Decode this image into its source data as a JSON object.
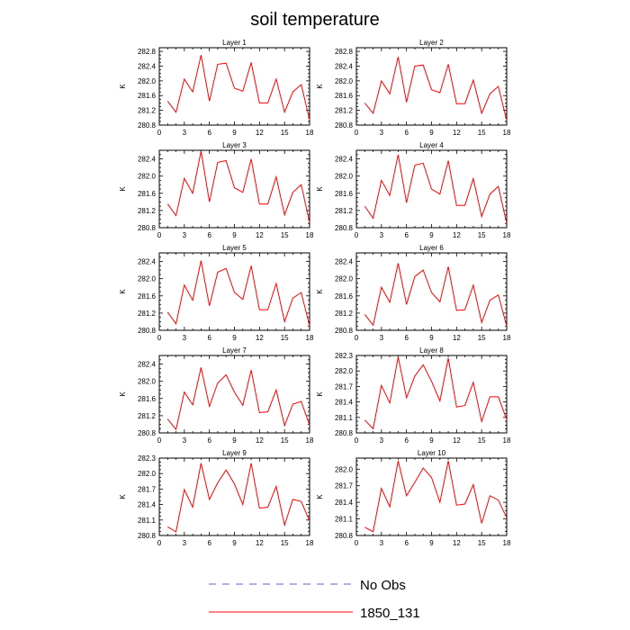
{
  "chart_data": {
    "type": "line",
    "title": "soil temperature",
    "legend": {
      "placement": "bottom",
      "entries": [
        {
          "label": "No Obs",
          "color": "#5566cc",
          "dash": true
        },
        {
          "label": "1850_131",
          "color": "#ff0000",
          "dash": false
        }
      ]
    },
    "x": [
      1,
      2,
      3,
      4,
      5,
      6,
      7,
      8,
      9,
      10,
      11,
      12,
      13,
      14,
      15,
      16,
      17,
      18
    ],
    "xlim": [
      0,
      18
    ],
    "xticks": [
      "0",
      "3",
      "6",
      "9",
      "12",
      "15",
      "18"
    ],
    "panels": [
      {
        "title": "Layer 1",
        "ylabel": "K",
        "ylim": [
          280.8,
          282.9
        ],
        "yticks": [
          "280.8",
          "281.2",
          "281.6",
          "282.0",
          "282.4",
          "282.8"
        ],
        "values": [
          281.45,
          281.15,
          282.05,
          281.7,
          282.7,
          281.45,
          282.45,
          282.48,
          281.8,
          281.72,
          282.5,
          281.4,
          281.4,
          282.05,
          281.15,
          281.7,
          281.9,
          280.95
        ]
      },
      {
        "title": "Layer 2",
        "ylabel": "K",
        "ylim": [
          280.8,
          282.9
        ],
        "yticks": [
          "280.8",
          "281.2",
          "281.6",
          "282.0",
          "282.4",
          "282.8"
        ],
        "values": [
          281.4,
          281.12,
          282.0,
          281.65,
          282.65,
          281.42,
          282.4,
          282.43,
          281.76,
          281.68,
          282.45,
          281.38,
          281.38,
          282.02,
          281.12,
          281.65,
          281.85,
          280.93
        ]
      },
      {
        "title": "Layer 3",
        "ylabel": "K",
        "ylim": [
          280.8,
          282.6
        ],
        "yticks": [
          "280.8",
          "281.2",
          "281.6",
          "282.0",
          "282.4"
        ],
        "values": [
          281.35,
          281.08,
          281.95,
          281.6,
          282.58,
          281.4,
          282.32,
          282.36,
          281.73,
          281.62,
          282.4,
          281.35,
          281.35,
          281.98,
          281.1,
          281.62,
          281.8,
          280.92
        ]
      },
      {
        "title": "Layer 4",
        "ylabel": "K",
        "ylim": [
          280.8,
          282.6
        ],
        "yticks": [
          "280.8",
          "281.2",
          "281.6",
          "282.0",
          "282.4"
        ],
        "values": [
          281.3,
          281.02,
          281.9,
          281.55,
          282.5,
          281.38,
          282.25,
          282.3,
          281.7,
          281.58,
          282.36,
          281.32,
          281.32,
          281.94,
          281.06,
          281.58,
          281.76,
          280.9
        ]
      },
      {
        "title": "Layer 5",
        "ylabel": "K",
        "ylim": [
          280.8,
          282.6
        ],
        "yticks": [
          "280.8",
          "281.2",
          "281.6",
          "282.0",
          "282.4"
        ],
        "values": [
          281.22,
          280.95,
          281.85,
          281.5,
          282.42,
          281.37,
          282.15,
          282.24,
          281.68,
          281.52,
          282.3,
          281.28,
          281.28,
          281.89,
          281.0,
          281.55,
          281.68,
          280.9
        ]
      },
      {
        "title": "Layer 6",
        "ylabel": "K",
        "ylim": [
          280.8,
          282.6
        ],
        "yticks": [
          "280.8",
          "281.2",
          "281.6",
          "282.0",
          "282.4"
        ],
        "values": [
          281.17,
          280.92,
          281.8,
          281.45,
          282.36,
          281.4,
          282.05,
          282.2,
          281.68,
          281.46,
          282.28,
          281.26,
          281.28,
          281.85,
          280.98,
          281.5,
          281.62,
          280.9
        ]
      },
      {
        "title": "Layer 7",
        "ylabel": "K",
        "ylim": [
          280.8,
          282.6
        ],
        "yticks": [
          "280.8",
          "281.2",
          "281.6",
          "282.0",
          "282.4"
        ],
        "values": [
          281.12,
          280.88,
          281.75,
          281.45,
          282.32,
          281.42,
          281.96,
          282.15,
          281.75,
          281.44,
          282.26,
          281.27,
          281.29,
          281.8,
          280.97,
          281.47,
          281.53,
          280.98
        ]
      },
      {
        "title": "Layer 8",
        "ylabel": "K",
        "ylim": [
          280.8,
          282.3
        ],
        "yticks": [
          "280.8",
          "281.1",
          "281.4",
          "281.7",
          "282.0",
          "282.3"
        ],
        "values": [
          281.05,
          280.88,
          281.72,
          281.38,
          282.27,
          281.48,
          281.9,
          282.12,
          281.8,
          281.42,
          282.25,
          281.3,
          281.33,
          281.78,
          281.02,
          281.5,
          281.5,
          281.06
        ]
      },
      {
        "title": "Layer 9",
        "ylabel": "K",
        "ylim": [
          280.8,
          282.3
        ],
        "yticks": [
          "280.8",
          "281.1",
          "281.4",
          "281.7",
          "282.0",
          "282.3"
        ],
        "values": [
          280.97,
          280.87,
          281.69,
          281.35,
          282.2,
          281.5,
          281.82,
          282.07,
          281.8,
          281.4,
          282.2,
          281.33,
          281.35,
          281.75,
          281.0,
          281.5,
          281.46,
          281.08
        ]
      },
      {
        "title": "Layer 10",
        "ylabel": "K",
        "ylim": [
          280.8,
          282.2
        ],
        "yticks": [
          "280.8",
          "281.1",
          "281.4",
          "281.7",
          "282.0"
        ],
        "values": [
          280.95,
          280.87,
          281.65,
          281.32,
          282.15,
          281.52,
          281.76,
          282.02,
          281.85,
          281.4,
          282.15,
          281.35,
          281.37,
          281.72,
          281.02,
          281.52,
          281.44,
          281.12
        ]
      }
    ]
  }
}
